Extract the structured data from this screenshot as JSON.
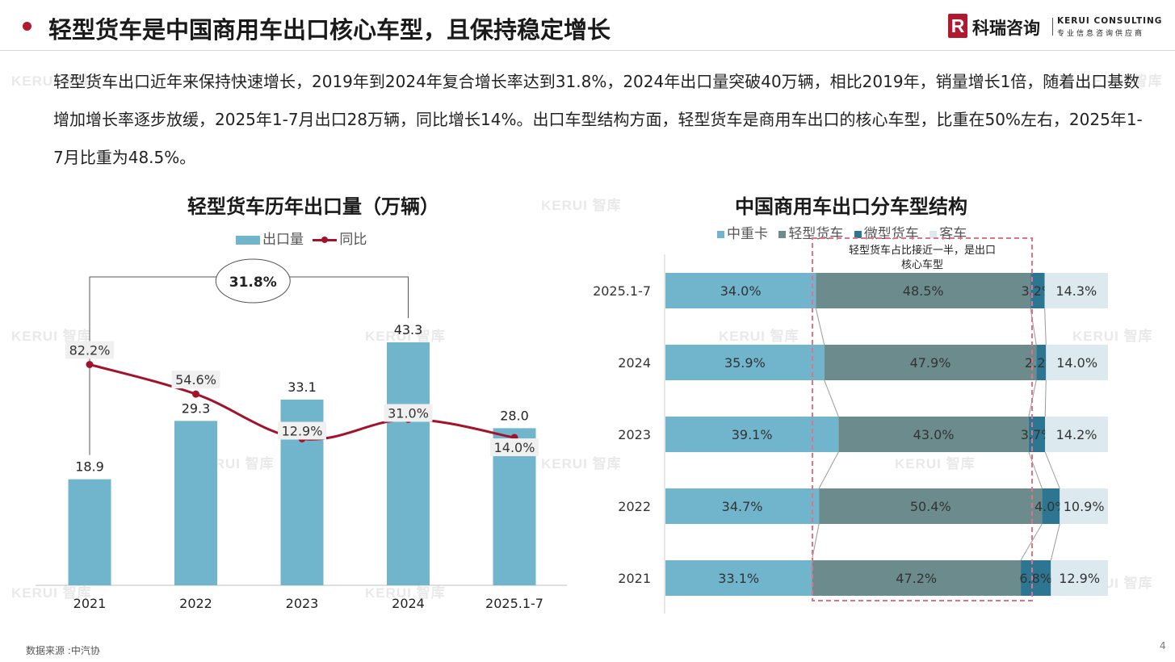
{
  "header": {
    "title": "轻型货车是中国商用车出口核心车型，且保持稳定增长",
    "logo_cn": "科瑞咨询",
    "logo_en": "KERUI CONSULTING",
    "logo_en_sub": "专业信息咨询供应商"
  },
  "summary": "轻型货车出口近年来保持快速增长，2019年到2024年复合增长率达到31.8%，2024年出口量突破40万辆，相比2019年，销量增长1倍，随着出口基数增加增长率逐步放缓，2025年1-7月出口28万辆，同比增长14%。出口车型结构方面，轻型货车是商用车出口的核心车型，比重在50%左右，2025年1-7月比重为48.5%。",
  "watermark": "KERUI 智库",
  "footer": {
    "source": "数据来源 :中汽协",
    "page": "4"
  },
  "colors": {
    "bar": "#70b5cc",
    "line": "#a3122a",
    "medium_heavy": "#70b5cc",
    "light": "#6b8b8d",
    "micro": "#2c7691",
    "bus": "#dce9ee",
    "highlight_box": "#e0738a"
  },
  "chart_data": [
    {
      "type": "bar",
      "title": "轻型货车历年出口量（万辆）",
      "categories": [
        "2021",
        "2022",
        "2023",
        "2024",
        "2025.1-7"
      ],
      "series": [
        {
          "name": "出口量",
          "type": "bar",
          "values": [
            18.9,
            29.3,
            33.1,
            43.3,
            28.0
          ]
        },
        {
          "name": "同比",
          "type": "line",
          "values": [
            82.2,
            54.6,
            12.9,
            31.0,
            14.0
          ],
          "unit": "%"
        }
      ],
      "annotation": "31.8%",
      "legend_position": "top",
      "grid": false
    },
    {
      "type": "bar",
      "orientation": "horizontal",
      "stacked": "percent",
      "title": "中国商用车出口分车型结构",
      "categories": [
        "2025.1-7",
        "2024",
        "2023",
        "2022",
        "2021"
      ],
      "series": [
        {
          "name": "中重卡",
          "values": [
            34.0,
            35.9,
            39.1,
            34.7,
            33.1
          ]
        },
        {
          "name": "轻型货车",
          "values": [
            48.5,
            47.9,
            43.0,
            50.4,
            47.2
          ]
        },
        {
          "name": "微型货车",
          "values": [
            3.2,
            2.2,
            3.7,
            4.0,
            6.8
          ]
        },
        {
          "name": "客车",
          "values": [
            14.3,
            14.0,
            14.2,
            10.9,
            12.9
          ]
        }
      ],
      "annotation": "轻型货车占比接近一半，是出口核心车型",
      "legend_position": "top",
      "grid": false
    }
  ]
}
